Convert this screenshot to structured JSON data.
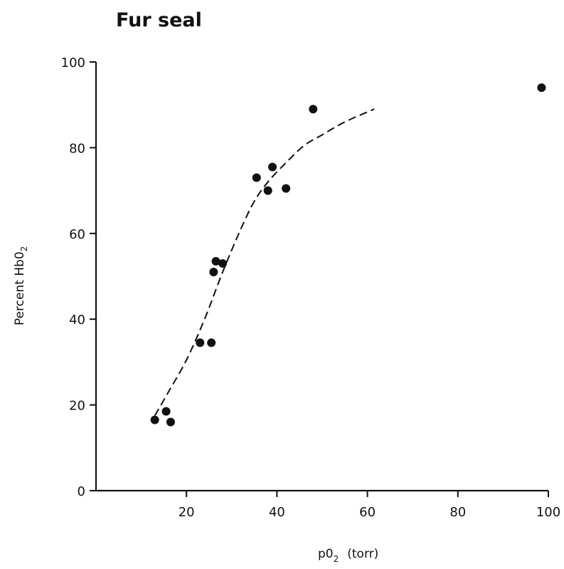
{
  "chart_data": {
    "type": "scatter",
    "title": "Fur seal",
    "xlabel_main": "p0",
    "xlabel_sub": "2",
    "xlabel_unit": "(torr)",
    "ylabel_main": "Percent Hb0",
    "ylabel_sub": "2",
    "xlim": [
      0,
      100
    ],
    "ylim": [
      0,
      100
    ],
    "x_ticks": [
      20,
      40,
      60,
      80,
      100
    ],
    "y_ticks": [
      0,
      20,
      40,
      60,
      80,
      100
    ],
    "grid": false,
    "colors": {
      "points": "#111111",
      "curve": "#111111",
      "axes": "#111111"
    },
    "points": [
      {
        "x": 13,
        "y": 16.5
      },
      {
        "x": 15.5,
        "y": 18.5
      },
      {
        "x": 16.5,
        "y": 16
      },
      {
        "x": 23,
        "y": 34.5
      },
      {
        "x": 25.5,
        "y": 34.5
      },
      {
        "x": 26,
        "y": 51
      },
      {
        "x": 26.5,
        "y": 53.5
      },
      {
        "x": 28,
        "y": 53
      },
      {
        "x": 35.5,
        "y": 73
      },
      {
        "x": 38,
        "y": 70
      },
      {
        "x": 39,
        "y": 75.5
      },
      {
        "x": 42,
        "y": 70.5
      },
      {
        "x": 48,
        "y": 89
      },
      {
        "x": 98.5,
        "y": 94
      }
    ],
    "fit_curve": {
      "style": "dashed",
      "x": [
        13,
        16,
        20,
        24,
        28,
        32,
        35,
        38,
        42,
        46,
        50,
        55,
        61.5
      ],
      "y": [
        17.5,
        23,
        30.5,
        40,
        51,
        61,
        67.5,
        72,
        76.5,
        80.5,
        83,
        86,
        89
      ]
    }
  }
}
